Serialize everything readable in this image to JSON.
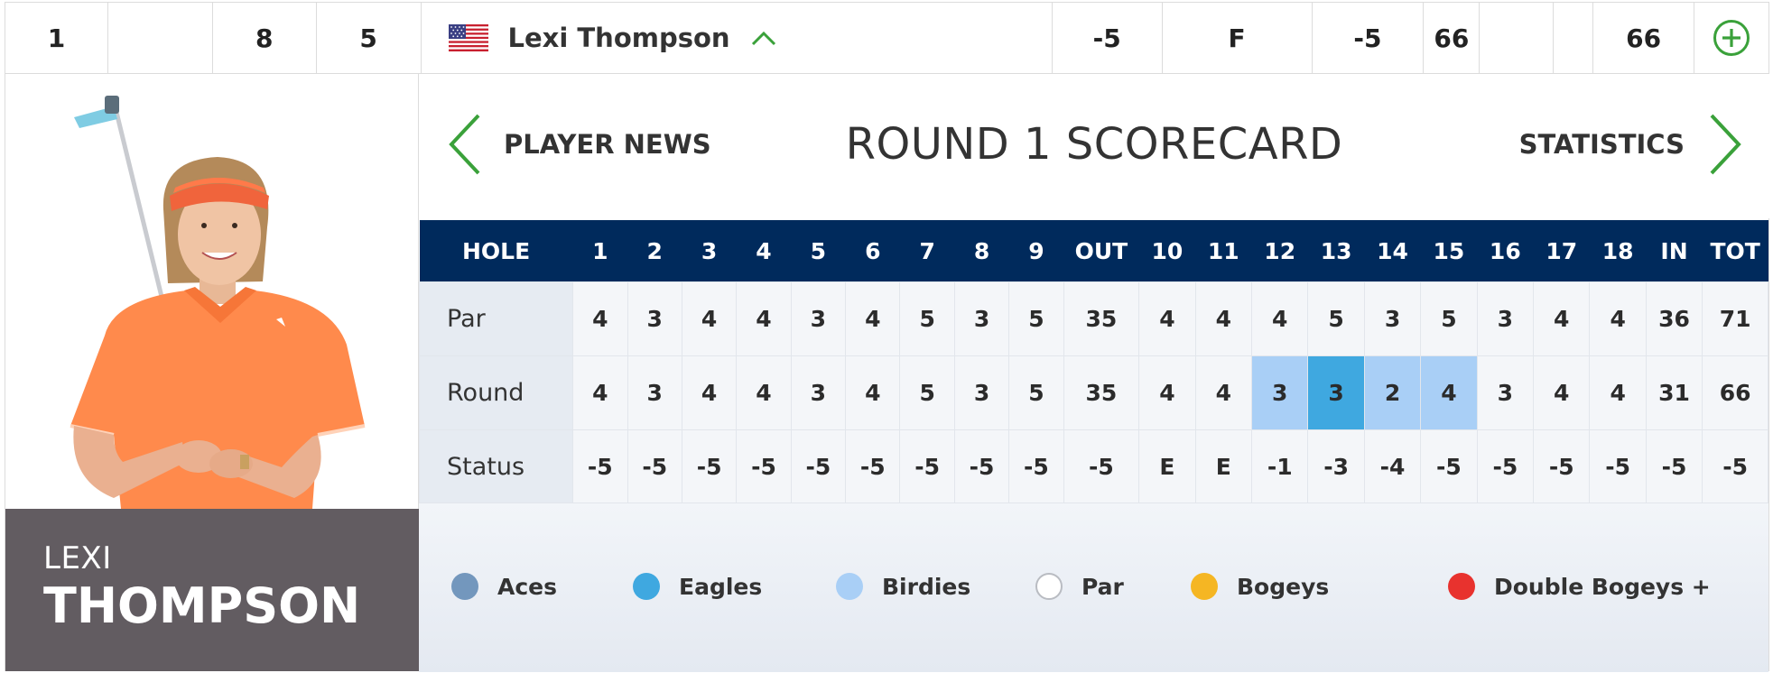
{
  "summary": {
    "position": "1",
    "col2": "",
    "col3": "8",
    "col4": "5",
    "player_name": "Lexi Thompson",
    "total_to_par": "-5",
    "thru": "F",
    "round_to_par": "-5",
    "round_score": "66",
    "empty1": "",
    "empty2": "",
    "total_strokes": "66",
    "icons": {
      "flag": "us-flag-icon",
      "expand": "chevron-up-icon",
      "add": "plus-circle-icon"
    }
  },
  "player": {
    "first_name": "LEXI",
    "last_name": "THOMPSON"
  },
  "scorecard_header": {
    "left_link": "PLAYER NEWS",
    "title": "ROUND 1 SCORECARD",
    "right_link": "STATISTICS"
  },
  "scorecard": {
    "columns": [
      "HOLE",
      "1",
      "2",
      "3",
      "4",
      "5",
      "6",
      "7",
      "8",
      "9",
      "OUT",
      "10",
      "11",
      "12",
      "13",
      "14",
      "15",
      "16",
      "17",
      "18",
      "IN",
      "TOT"
    ],
    "rows": [
      {
        "label": "Par",
        "cells": [
          "4",
          "3",
          "4",
          "4",
          "3",
          "4",
          "5",
          "3",
          "5",
          "35",
          "4",
          "4",
          "4",
          "5",
          "3",
          "5",
          "3",
          "4",
          "4",
          "36",
          "71"
        ]
      },
      {
        "label": "Round",
        "cells": [
          "4",
          "3",
          "4",
          "4",
          "3",
          "4",
          "5",
          "3",
          "5",
          "35",
          "4",
          "4",
          "3",
          "3",
          "2",
          "4",
          "3",
          "4",
          "4",
          "31",
          "66"
        ]
      },
      {
        "label": "Status",
        "cells": [
          "-5",
          "-5",
          "-5",
          "-5",
          "-5",
          "-5",
          "-5",
          "-5",
          "-5",
          "-5",
          "E",
          "E",
          "-1",
          "-3",
          "-4",
          "-5",
          "-5",
          "-5",
          "-5",
          "-5",
          "-5"
        ]
      }
    ]
  },
  "legend": [
    {
      "label": "Aces",
      "color": "#7397bd"
    },
    {
      "label": "Eagles",
      "color": "#3fa8e0"
    },
    {
      "label": "Birdies",
      "color": "#a9cff6"
    },
    {
      "label": "Par",
      "color": "#ffffff"
    },
    {
      "label": "Bogeys",
      "color": "#f5b623"
    },
    {
      "label": "Double Bogeys +",
      "color": "#e8322e"
    }
  ],
  "colors": {
    "accent": "#3aa13a",
    "header_bg": "#002a5c",
    "name_block": "#625c61"
  }
}
